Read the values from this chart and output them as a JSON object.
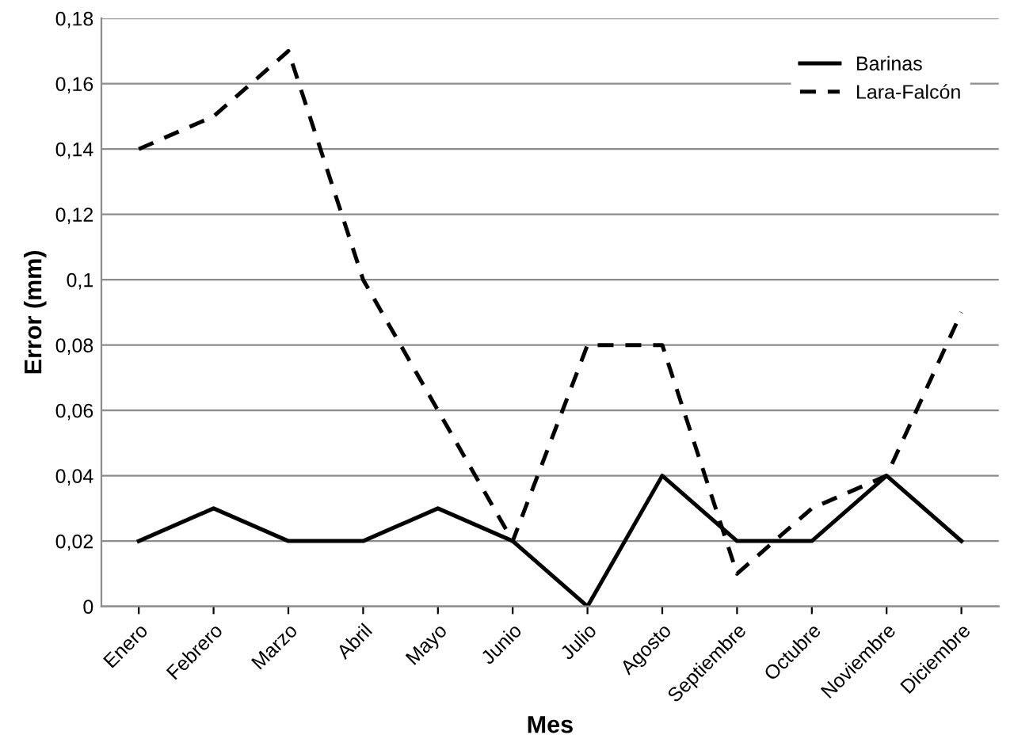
{
  "chart_data": {
    "type": "line",
    "xlabel": "Mes",
    "ylabel": "Error (mm)",
    "categories": [
      "Enero",
      "Febrero",
      "Marzo",
      "Abril",
      "Mayo",
      "Junio",
      "Julio",
      "Agosto",
      "Septiembre",
      "Octubre",
      "Noviembre",
      "Diciembre"
    ],
    "series": [
      {
        "name": "Barinas",
        "color": "#000000",
        "line_style": "solid",
        "values": [
          0.02,
          0.03,
          0.02,
          0.02,
          0.03,
          0.02,
          0,
          0.04,
          0.02,
          0.02,
          0.04,
          0.02
        ]
      },
      {
        "name": "Lara-Falcón",
        "color": "#000000",
        "line_style": "dashed",
        "values": [
          0.14,
          0.15,
          0.17,
          0.1,
          0.06,
          0.02,
          0.08,
          0.08,
          0.01,
          0.03,
          0.04,
          0.09
        ]
      }
    ],
    "ylim": [
      0,
      0.18
    ],
    "yticks": [
      0,
      {
        "value": 0.02,
        "label": "0,02"
      },
      {
        "value": 0.04,
        "label": "0,04"
      },
      {
        "value": 0.06,
        "label": "0,06"
      },
      {
        "value": 0.08,
        "label": "0,08"
      },
      {
        "value": 0.1,
        "label": "0,1"
      },
      {
        "value": 0.12,
        "label": "0,12"
      },
      {
        "value": 0.14,
        "label": "0,14"
      },
      {
        "value": 0.16,
        "label": "0,16"
      },
      {
        "value": 0.18,
        "label": "0,18"
      }
    ],
    "grid": "y",
    "legend": "top right",
    "marker": "none"
  }
}
